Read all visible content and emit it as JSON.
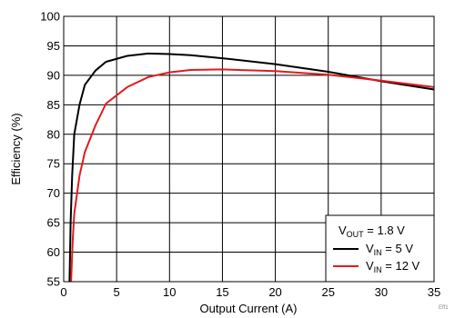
{
  "chart_data": {
    "type": "line",
    "xlabel": "Output Current (A)",
    "ylabel": "Efficiency (%)",
    "xlim": [
      0,
      35
    ],
    "ylim": [
      55,
      100
    ],
    "x_ticks": [
      0,
      5,
      10,
      15,
      20,
      25,
      30,
      35
    ],
    "y_ticks": [
      55,
      60,
      65,
      70,
      75,
      80,
      85,
      90,
      95,
      100
    ],
    "grid": true,
    "legend": {
      "placement": "bottom-right",
      "header": {
        "base": "V",
        "sub": "OUT",
        "rest": " = 1.8 V"
      },
      "entries": [
        {
          "base": "V",
          "sub": "IN",
          "rest": " = 5 V",
          "color": "#000000"
        },
        {
          "base": "V",
          "sub": "IN",
          "rest": " = 12 V",
          "color": "#e31a1c"
        }
      ]
    },
    "series": [
      {
        "color": "#000000",
        "x": [
          0.55,
          0.65,
          0.8,
          1.0,
          1.5,
          2.0,
          3.0,
          4.0,
          6.0,
          8.0,
          10.0,
          12.0,
          15.0,
          20.0,
          25.0,
          30.0,
          35.0
        ],
        "y": [
          55,
          65,
          73,
          80,
          85,
          88.4,
          90.8,
          92.3,
          93.3,
          93.7,
          93.6,
          93.4,
          92.9,
          91.9,
          90.6,
          89.0,
          87.6
        ]
      },
      {
        "color": "#e31a1c",
        "x": [
          0.7,
          0.85,
          1.0,
          1.5,
          2.0,
          3.0,
          4.0,
          6.0,
          8.0,
          10.0,
          12.0,
          15.0,
          20.0,
          25.0,
          30.0,
          35.0
        ],
        "y": [
          55,
          62,
          66.5,
          73,
          77,
          81.5,
          85.2,
          88.0,
          89.7,
          90.5,
          90.9,
          91.0,
          90.7,
          90.1,
          89.1,
          88.0
        ]
      }
    ]
  },
  "figure_id": "Eff1"
}
